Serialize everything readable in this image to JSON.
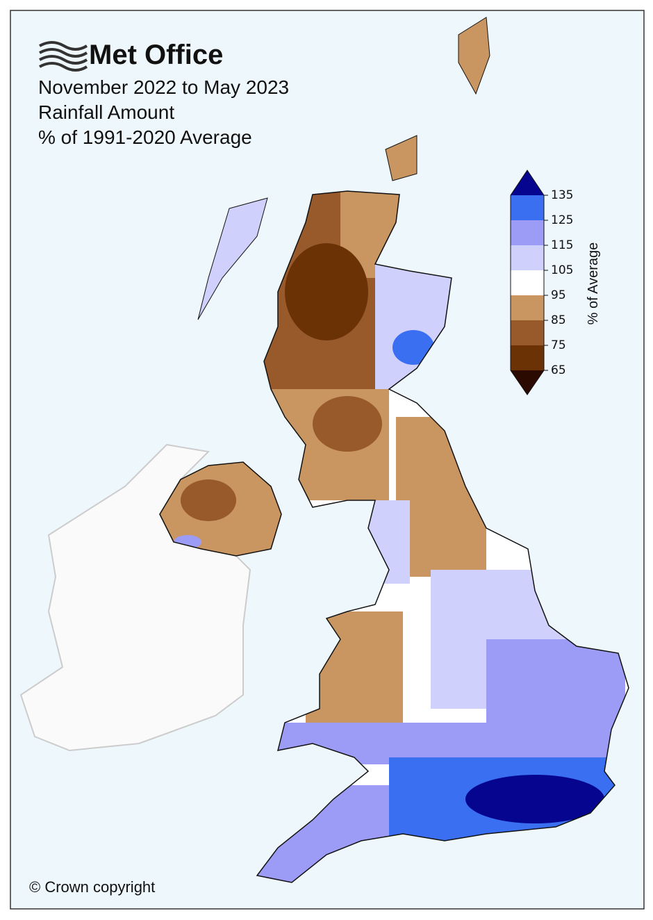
{
  "header": {
    "logo": "Met Office",
    "title_lines": [
      "November 2022 to May 2023",
      "Rainfall Amount",
      "% of 1991-2020 Average"
    ]
  },
  "colorbar": {
    "label": "% of Average",
    "ticks": [
      65,
      75,
      85,
      95,
      105,
      115,
      125,
      135
    ],
    "colors": [
      "#6b3206",
      "#98592b",
      "#c99662",
      "#ffffff",
      "#cfd0fb",
      "#9c9cf6",
      "#3b6ff2"
    ],
    "under_color": "#2b0a02",
    "over_color": "#05058f"
  },
  "footer": "© Crown copyright"
}
